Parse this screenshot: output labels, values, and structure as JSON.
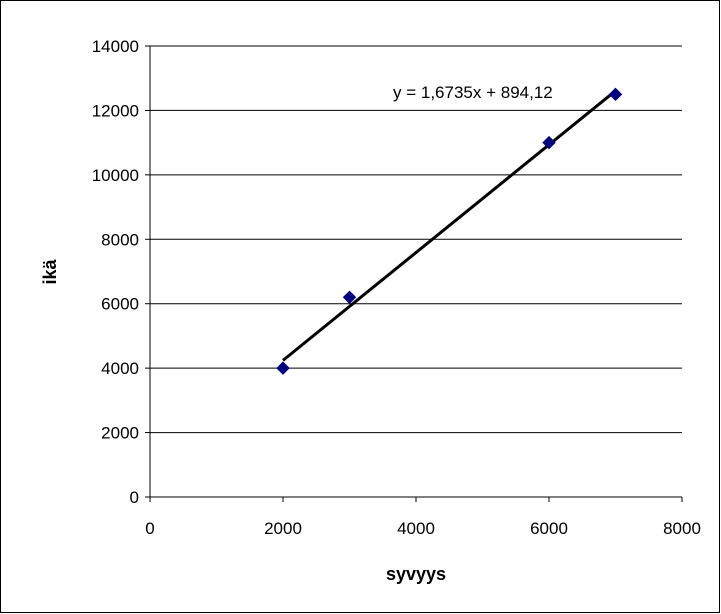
{
  "chart_data": {
    "type": "scatter",
    "title": "",
    "xlabel": "syvyys",
    "ylabel": "ikä",
    "xlim": [
      0,
      8000
    ],
    "ylim": [
      0,
      14000
    ],
    "x_ticks": [
      0,
      2000,
      4000,
      6000,
      8000
    ],
    "y_ticks": [
      0,
      2000,
      4000,
      6000,
      8000,
      10000,
      12000,
      14000
    ],
    "x_tick_labels": [
      "0",
      "2000",
      "4000",
      "6000",
      "8000"
    ],
    "y_tick_labels": [
      "0",
      "2000",
      "4000",
      "6000",
      "8000",
      "10000",
      "12000",
      "14000"
    ],
    "grid": "horizontal",
    "legend": "none",
    "series": [
      {
        "marker": "diamond",
        "color": "#000080",
        "points": [
          {
            "x": 2000,
            "y": 4000
          },
          {
            "x": 3000,
            "y": 6200
          },
          {
            "x": 6000,
            "y": 11000
          },
          {
            "x": 7000,
            "y": 12500
          }
        ]
      }
    ],
    "trendline": {
      "type": "linear",
      "slope": 1.6735,
      "intercept": 894.12,
      "x_range": [
        2000,
        7000
      ],
      "color": "#000000",
      "equation_label": "y = 1,6735x + 894,12"
    }
  },
  "colors": {
    "background": "#ffffff",
    "frame": "#000000",
    "gridline": "#000000",
    "marker": "#000080",
    "trendline": "#000000"
  }
}
